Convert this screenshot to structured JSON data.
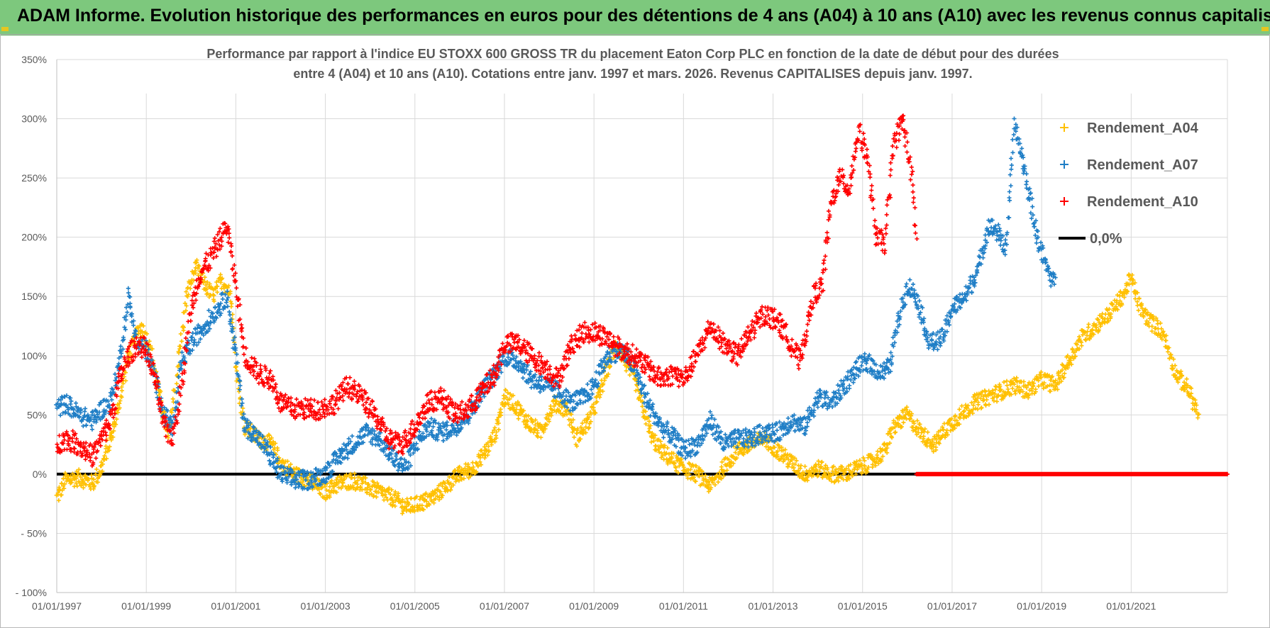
{
  "banner": {
    "title": "ADAM Informe. Evolution historique des performances en euros pour des détentions de 4 ans (A04) à 10 ans (A10) avec les revenus connus capitalisés"
  },
  "chart_data": {
    "type": "scatter",
    "title_line1": "Performance par rapport à l'indice EU STOXX 600 GROSS TR  du placement Eaton Corp PLC en fonction de la date de début pour des durées",
    "title_line2": "entre 4 (A04) et 10 ans (A10). Cotations entre janv. 1997 et mars. 2026. Revenus CAPITALISES depuis janv. 1997.",
    "xlim": [
      1997.0,
      2023.15
    ],
    "ylim": [
      -100,
      350
    ],
    "x_ticks": [
      1997,
      1999,
      2001,
      2003,
      2005,
      2007,
      2009,
      2011,
      2013,
      2015,
      2017,
      2019,
      2021
    ],
    "x_tick_labels": [
      "01/01/1997",
      "01/01/1999",
      "01/01/2001",
      "01/01/2003",
      "01/01/2005",
      "01/01/2007",
      "01/01/2009",
      "01/01/2011",
      "01/01/2013",
      "01/01/2015",
      "01/01/2017",
      "01/01/2019",
      "01/01/2021"
    ],
    "y_ticks": [
      -100,
      -50,
      0,
      50,
      100,
      150,
      200,
      250,
      300,
      350
    ],
    "y_tick_labels": [
      "- 100%",
      "- 50%",
      "0%",
      "50%",
      "100%",
      "150%",
      "200%",
      "250%",
      "300%",
      "350%"
    ],
    "grid": true,
    "legend_position": "top-right",
    "series": [
      {
        "name": "Rendement_A04",
        "color": "#ffc000",
        "marker": "+",
        "x": [
          1997.0,
          1997.2,
          1997.5,
          1997.8,
          1998.0,
          1998.2,
          1998.4,
          1998.6,
          1998.8,
          1998.9,
          1999.1,
          1999.3,
          1999.5,
          1999.7,
          1999.9,
          2000.1,
          2000.3,
          2000.5,
          2000.7,
          2000.9,
          2001.0,
          2001.2,
          2001.5,
          2001.8,
          2002.0,
          2002.3,
          2002.6,
          2003.0,
          2003.3,
          2003.6,
          2003.9,
          2004.2,
          2004.5,
          2004.8,
          2005.1,
          2005.4,
          2005.7,
          2006.0,
          2006.3,
          2006.6,
          2006.8,
          2007.0,
          2007.2,
          2007.5,
          2007.8,
          2008.1,
          2008.4,
          2008.6,
          2008.9,
          2009.1,
          2009.3,
          2009.5,
          2009.7,
          2009.9,
          2010.1,
          2010.3,
          2010.5,
          2010.8,
          2011.0,
          2011.3,
          2011.6,
          2011.9,
          2012.2,
          2012.5,
          2012.8,
          2013.1,
          2013.4,
          2013.7,
          2014.0,
          2014.3,
          2014.6,
          2014.9,
          2015.2,
          2015.5,
          2015.7,
          2016.0,
          2016.3,
          2016.6,
          2016.9,
          2017.2,
          2017.5,
          2017.8,
          2018.1,
          2018.4,
          2018.7,
          2019.0,
          2019.3,
          2019.6,
          2019.9,
          2020.2,
          2020.5,
          2020.8,
          2021.0,
          2021.2,
          2021.4,
          2021.7,
          2022.0,
          2022.3,
          2022.5
        ],
        "y": [
          -20,
          -5,
          -3,
          -8,
          5,
          30,
          60,
          100,
          118,
          125,
          105,
          65,
          30,
          90,
          150,
          175,
          160,
          150,
          165,
          150,
          90,
          40,
          30,
          25,
          10,
          0,
          -5,
          -15,
          -8,
          -5,
          -10,
          -15,
          -20,
          -28,
          -25,
          -20,
          -10,
          0,
          5,
          20,
          35,
          65,
          60,
          45,
          35,
          60,
          55,
          30,
          45,
          65,
          90,
          110,
          95,
          80,
          55,
          30,
          20,
          10,
          5,
          0,
          -10,
          5,
          20,
          25,
          30,
          20,
          10,
          0,
          5,
          0,
          0,
          5,
          10,
          20,
          40,
          50,
          35,
          25,
          40,
          50,
          60,
          65,
          70,
          75,
          70,
          80,
          75,
          95,
          115,
          125,
          135,
          150,
          165,
          140,
          130,
          120,
          85,
          70,
          50
        ],
        "spread": 7
      },
      {
        "name": "Rendement_A07",
        "color": "#1f7ec6",
        "marker": "+",
        "x": [
          1997.0,
          1997.2,
          1997.5,
          1997.8,
          1998.0,
          1998.2,
          1998.4,
          1998.6,
          1998.8,
          1999.0,
          1999.2,
          1999.4,
          1999.6,
          1999.8,
          2000.0,
          2000.2,
          2000.4,
          2000.6,
          2000.8,
          2001.0,
          2001.2,
          2001.4,
          2001.7,
          2002.0,
          2002.3,
          2002.6,
          2003.0,
          2003.3,
          2003.6,
          2003.9,
          2004.2,
          2004.5,
          2004.8,
          2005.0,
          2005.3,
          2005.6,
          2005.9,
          2006.2,
          2006.5,
          2006.8,
          2007.0,
          2007.3,
          2007.6,
          2007.9,
          2008.2,
          2008.5,
          2008.8,
          2009.0,
          2009.3,
          2009.6,
          2009.9,
          2010.2,
          2010.5,
          2010.8,
          2011.0,
          2011.3,
          2011.6,
          2011.9,
          2012.2,
          2012.5,
          2012.8,
          2013.1,
          2013.4,
          2013.7,
          2014.0,
          2014.3,
          2014.6,
          2014.9,
          2015.1,
          2015.4,
          2015.6,
          2015.8,
          2016.0,
          2016.2,
          2016.5,
          2016.8,
          2017.0,
          2017.3,
          2017.6,
          2017.8,
          2018.0,
          2018.2,
          2018.4,
          2018.6,
          2018.9,
          2019.1,
          2019.3
        ],
        "y": [
          55,
          60,
          50,
          45,
          55,
          60,
          95,
          150,
          110,
          105,
          80,
          50,
          40,
          95,
          110,
          120,
          130,
          140,
          150,
          100,
          40,
          35,
          20,
          0,
          -5,
          -5,
          0,
          15,
          25,
          35,
          30,
          15,
          5,
          25,
          40,
          35,
          40,
          50,
          70,
          85,
          100,
          95,
          80,
          75,
          70,
          60,
          65,
          75,
          100,
          105,
          90,
          60,
          40,
          30,
          20,
          25,
          45,
          25,
          30,
          30,
          35,
          35,
          45,
          40,
          65,
          60,
          75,
          90,
          95,
          85,
          90,
          130,
          160,
          150,
          110,
          115,
          140,
          150,
          175,
          210,
          205,
          190,
          295,
          260,
          200,
          175,
          160
        ],
        "spread": 8
      },
      {
        "name": "Rendement_A10",
        "color": "#ff0000",
        "marker": "+",
        "x": [
          1997.0,
          1997.2,
          1997.5,
          1997.8,
          1998.0,
          1998.2,
          1998.4,
          1998.6,
          1998.8,
          1999.0,
          1999.2,
          1999.4,
          1999.6,
          1999.8,
          2000.0,
          2000.2,
          2000.4,
          2000.6,
          2000.8,
          2001.0,
          2001.2,
          2001.5,
          2001.8,
          2002.0,
          2002.3,
          2002.6,
          2002.9,
          2003.2,
          2003.5,
          2003.8,
          2004.1,
          2004.4,
          2004.7,
          2005.0,
          2005.3,
          2005.6,
          2005.9,
          2006.2,
          2006.5,
          2006.8,
          2007.0,
          2007.3,
          2007.6,
          2007.9,
          2008.2,
          2008.5,
          2008.8,
          2009.0,
          2009.3,
          2009.6,
          2009.9,
          2010.2,
          2010.5,
          2010.8,
          2011.0,
          2011.3,
          2011.6,
          2011.9,
          2012.2,
          2012.5,
          2012.8,
          2013.1,
          2013.4,
          2013.6,
          2013.9,
          2014.1,
          2014.3,
          2014.5,
          2014.7,
          2014.9,
          2015.1,
          2015.3,
          2015.5,
          2015.7,
          2015.9,
          2016.1,
          2016.2
        ],
        "y": [
          25,
          30,
          25,
          15,
          30,
          45,
          80,
          100,
          110,
          105,
          80,
          40,
          30,
          80,
          140,
          170,
          180,
          195,
          210,
          160,
          100,
          85,
          80,
          60,
          55,
          55,
          55,
          60,
          75,
          65,
          50,
          30,
          25,
          40,
          60,
          65,
          50,
          55,
          70,
          85,
          110,
          110,
          100,
          90,
          80,
          110,
          120,
          120,
          115,
          105,
          100,
          90,
          80,
          85,
          80,
          100,
          125,
          110,
          100,
          120,
          135,
          130,
          110,
          95,
          150,
          160,
          230,
          250,
          240,
          290,
          270,
          200,
          195,
          280,
          300,
          250,
          200
        ],
        "spread": 9
      },
      {
        "name": "0,0%",
        "color": "#000000",
        "marker": "line"
      }
    ],
    "zero_red_segment": [
      2016.2,
      2023.15
    ]
  }
}
